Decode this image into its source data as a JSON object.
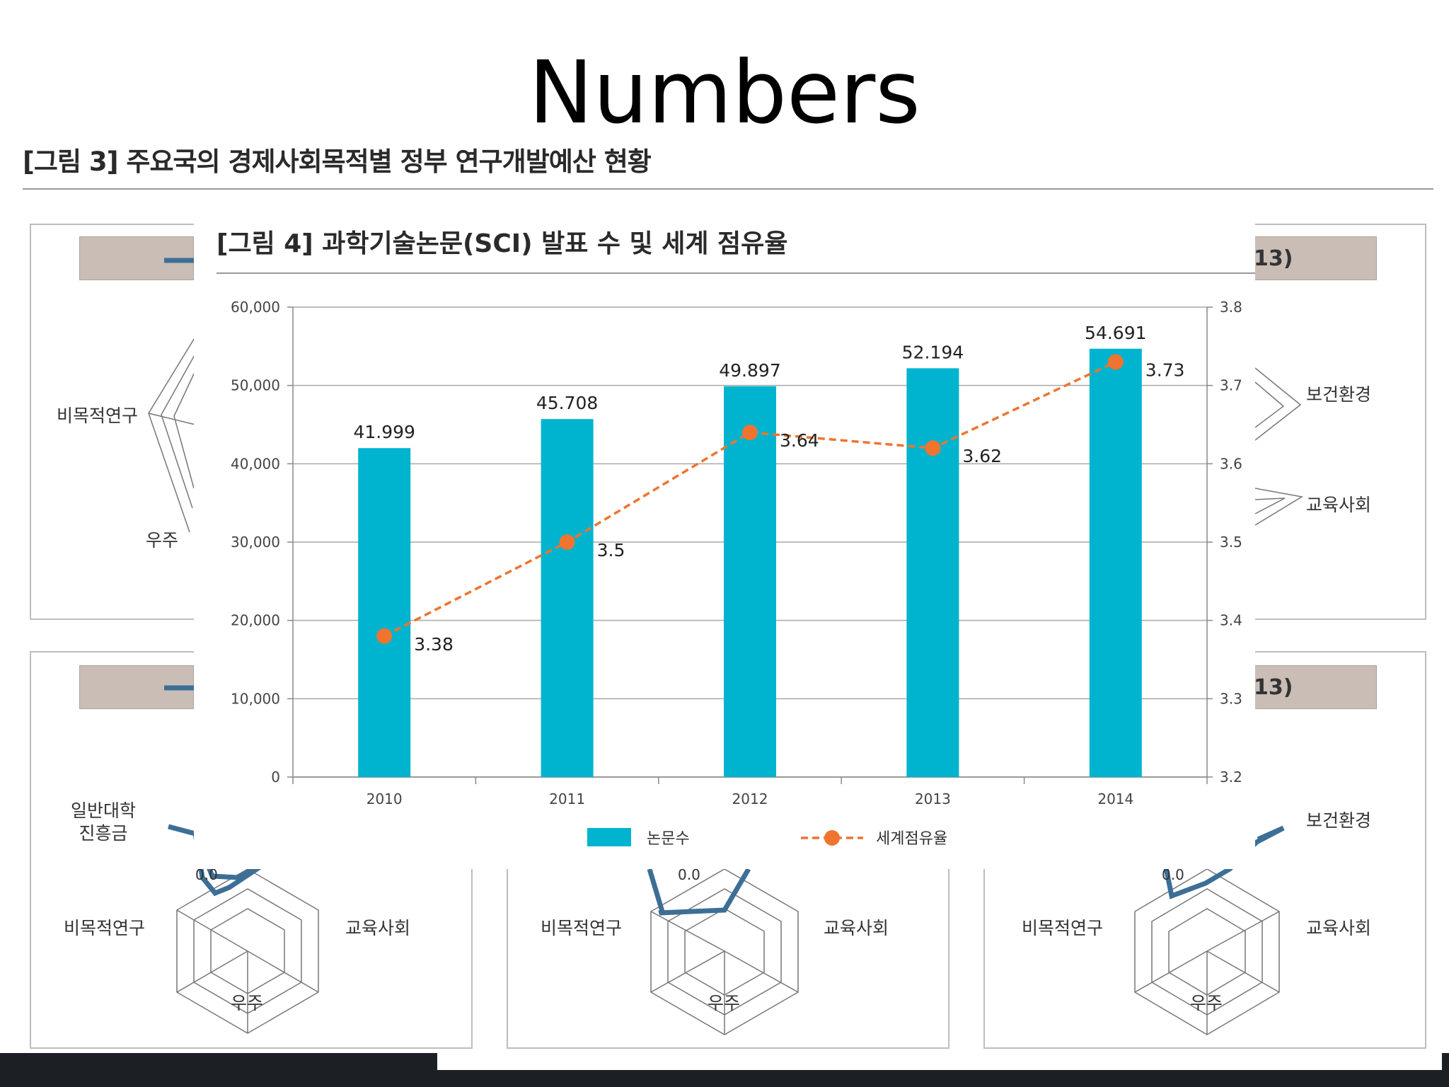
{
  "slide": {
    "title": "Numbers",
    "figure3_title": "[그림 3] 주요국의 경제사회목적별 정부 연구개발예산 현황",
    "figure3_header_fragments": [
      "13)",
      "13)"
    ],
    "radar_labels": {
      "top_left": [
        "비목적연구",
        "우주"
      ],
      "top_right": [
        "보건환경",
        "교육사회"
      ],
      "bottom_left": [
        "일반대학 진흥금",
        "비목적연구",
        "교육사회",
        "우주"
      ],
      "bottom_middle": [
        "비목적연구",
        "교육사회",
        "우주"
      ],
      "bottom_right": [
        "보건환경",
        "비목적연구",
        "교육사회",
        "우주"
      ]
    },
    "radar_axis_zero": "0.0",
    "colors": {
      "bar": "#00b4cf",
      "line": "#ee7430",
      "radar_line": "#3d6f96",
      "header_band": "#c9bdb5"
    }
  },
  "chart_data": {
    "type": "bar",
    "title": "[그림 4] 과학기술논문(SCI) 발표 수 및 세계 점유율",
    "categories": [
      "2010",
      "2011",
      "2012",
      "2013",
      "2014"
    ],
    "series": [
      {
        "name": "논문수",
        "type": "bar",
        "axis": "left",
        "values": [
          41999,
          45708,
          49897,
          52194,
          54691
        ],
        "labels": [
          "41.999",
          "45.708",
          "49.897",
          "52.194",
          "54.691"
        ]
      },
      {
        "name": "세계점유율",
        "type": "line",
        "axis": "right",
        "values": [
          3.38,
          3.5,
          3.64,
          3.62,
          3.73
        ],
        "labels": [
          "3.38",
          "3.5",
          "3.64",
          "3.62",
          "3.73"
        ]
      }
    ],
    "y_left": {
      "range": [
        0,
        60000
      ],
      "ticks": [
        0,
        10000,
        20000,
        30000,
        40000,
        50000,
        60000
      ],
      "tick_labels": [
        "0",
        "10,000",
        "20,000",
        "30,000",
        "40,000",
        "50,000",
        "60,000"
      ]
    },
    "y_right": {
      "range": [
        3.2,
        3.8
      ],
      "ticks": [
        3.2,
        3.3,
        3.4,
        3.5,
        3.6,
        3.7,
        3.8
      ],
      "tick_labels": [
        "3.2",
        "3.3",
        "3.4",
        "3.5",
        "3.6",
        "3.7",
        "3.8"
      ]
    },
    "grid": true,
    "legend": "bottom"
  }
}
